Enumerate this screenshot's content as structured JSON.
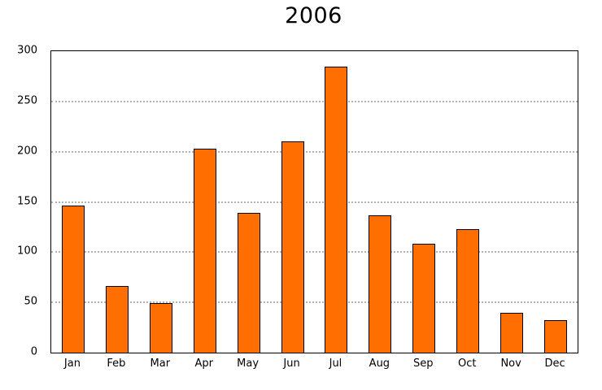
{
  "title": "2006",
  "colors": {
    "bar_fill": "#ff6e00",
    "bar_border": "#000000",
    "gridline": "#b3b3b3",
    "axis": "#000000",
    "background": "#ffffff",
    "text": "#000000"
  },
  "chart_data": {
    "type": "bar",
    "title": "2006",
    "categories": [
      "Jan",
      "Feb",
      "Mar",
      "Apr",
      "May",
      "Jun",
      "Jul",
      "Aug",
      "Sep",
      "Oct",
      "Nov",
      "Dec"
    ],
    "values": [
      146,
      66,
      49,
      203,
      139,
      210,
      285,
      137,
      108,
      123,
      40,
      32
    ],
    "xlabel": "",
    "ylabel": "",
    "ylim": [
      0,
      300
    ],
    "yticks": [
      0,
      50,
      100,
      150,
      200,
      250,
      300
    ],
    "grid": "horizontal-dotted",
    "legend": "none"
  }
}
